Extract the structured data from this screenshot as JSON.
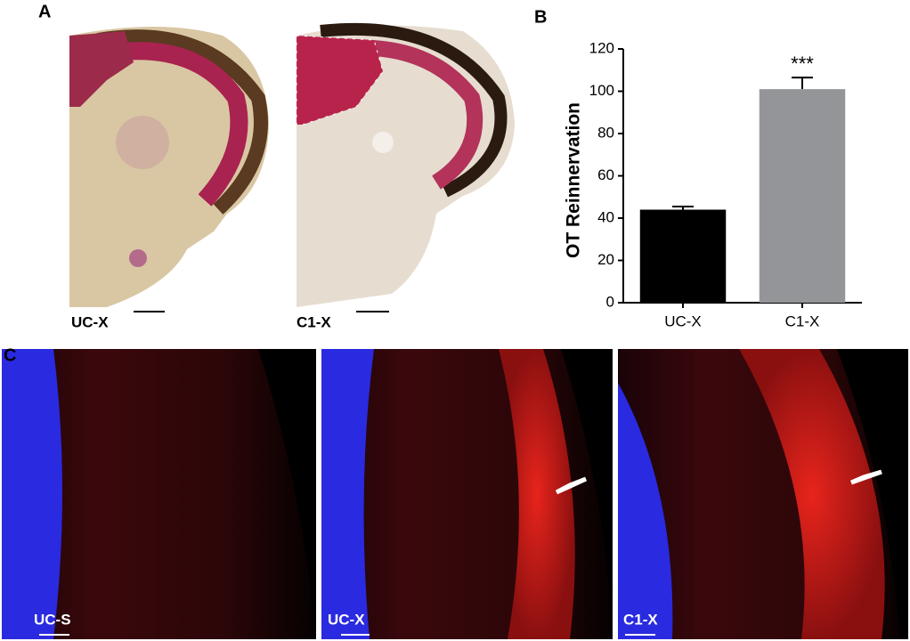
{
  "panel_labels": [
    "A",
    "B",
    "C"
  ],
  "histology_labels": [
    "UC-X",
    "C1-X"
  ],
  "fluorescence_labels": [
    "UC-S",
    "UC-X",
    "C1-X"
  ],
  "chart_data": {
    "type": "bar",
    "ylabel": "OT Reinnervation",
    "categories": [
      "UC-X",
      "C1-X"
    ],
    "values": [
      44,
      101
    ],
    "errors": [
      1.5,
      5.5
    ],
    "colors": [
      "#000000",
      "#939598"
    ],
    "annotation": "***",
    "ylim": [
      0,
      120
    ],
    "yticks": [
      0,
      20,
      40,
      60,
      80,
      100,
      120
    ]
  }
}
